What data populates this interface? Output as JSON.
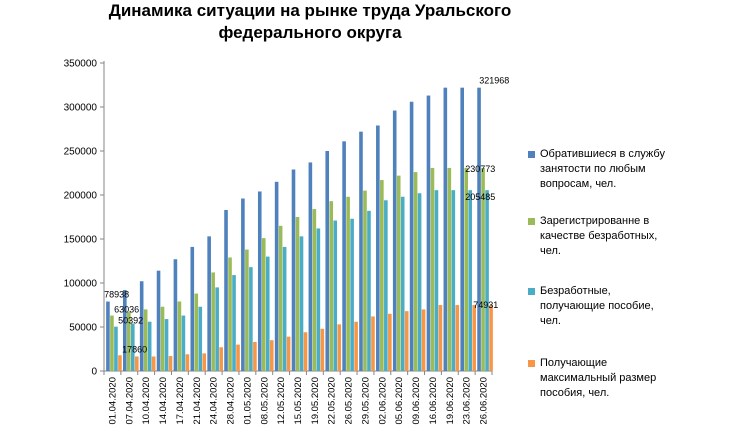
{
  "chart_data": {
    "type": "bar",
    "title": [
      "Динамика ситуации  на рынке труда Уральского",
      "федерального округа"
    ],
    "categories": [
      "01.04.2020",
      "07.04.2020",
      "10.04.2020",
      "14.04.2020",
      "17.04.2020",
      "21.04.2020",
      "24.04.2020",
      "28.04.2020",
      "01.05.2020",
      "08.05.2020",
      "12.05.2020",
      "15.05.2020",
      "19.05.2020",
      "22.05.2020",
      "26.05.2020",
      "29.05.2020",
      "02.06.2020",
      "05.06.2020",
      "09.06.2020",
      "16.06.2020",
      "19.06.2020",
      "23.06.2020",
      "26.06.2020"
    ],
    "ylim": [
      0,
      350000
    ],
    "yticks": [
      0,
      50000,
      100000,
      150000,
      200000,
      250000,
      300000,
      350000
    ],
    "gridlines": false,
    "legend_position": "right",
    "series": [
      {
        "name": "Обратившиеся в службу занятости по любым вопросам, чел.",
        "color": "#4f81bd",
        "values": [
          78938,
          92000,
          102000,
          114000,
          127000,
          141000,
          153000,
          183000,
          196000,
          204000,
          215000,
          229000,
          237000,
          250000,
          261000,
          272000,
          279000,
          296000,
          306000,
          313000,
          321968,
          321968,
          321968
        ]
      },
      {
        "name": "Зарегистрированне в качестве безработных, чел.",
        "color": "#9bbb59",
        "values": [
          63036,
          67000,
          70000,
          73000,
          79000,
          88000,
          112000,
          129000,
          138000,
          151000,
          165000,
          175000,
          184000,
          193000,
          198000,
          205000,
          217000,
          222000,
          226000,
          230773,
          230773,
          230773,
          230773
        ]
      },
      {
        "name": "Безработные, получающие пособие, чел.",
        "color": "#4bacc6",
        "values": [
          50392,
          54000,
          56000,
          59000,
          63000,
          73000,
          95000,
          109000,
          118000,
          130000,
          141000,
          153000,
          162000,
          171000,
          173000,
          182000,
          194000,
          198000,
          202000,
          205485,
          205485,
          205485,
          205485
        ]
      },
      {
        "name": "Получающие максимальный размер пособия, чел.",
        "color": "#f79646",
        "values": [
          17860,
          16500,
          16500,
          17000,
          19000,
          20000,
          27000,
          30000,
          33000,
          35000,
          39000,
          44000,
          48000,
          53000,
          56000,
          62000,
          65000,
          68000,
          70000,
          74931,
          74931,
          74931,
          74931
        ]
      }
    ],
    "data_labels": [
      {
        "category_index": 0,
        "series_index": 0,
        "text": "78938"
      },
      {
        "category_index": 0,
        "series_index": 1,
        "text": "63036"
      },
      {
        "category_index": 0,
        "series_index": 2,
        "text": "50392"
      },
      {
        "category_index": 0,
        "series_index": 3,
        "text": "17860"
      },
      {
        "category_index": 22,
        "series_index": 0,
        "text": "321968"
      },
      {
        "category_index": 22,
        "series_index": 1,
        "text": "230773"
      },
      {
        "category_index": 22,
        "series_index": 2,
        "text": "205485"
      },
      {
        "category_index": 22,
        "series_index": 3,
        "text": "74931"
      }
    ]
  },
  "legend": [
    {
      "lines": [
        "Обратившиеся в службу",
        "занятости по любым",
        "вопросам, чел."
      ],
      "color": "#4f81bd"
    },
    {
      "lines": [
        "Зарегистрированне в",
        "качестве безработных,",
        "чел."
      ],
      "color": "#9bbb59"
    },
    {
      "lines": [
        "Безработные,",
        "получающие пособие,",
        "чел."
      ],
      "color": "#4bacc6"
    },
    {
      "lines": [
        "Получающие",
        "максимальный размер",
        "пособия, чел."
      ],
      "color": "#f79646"
    }
  ]
}
